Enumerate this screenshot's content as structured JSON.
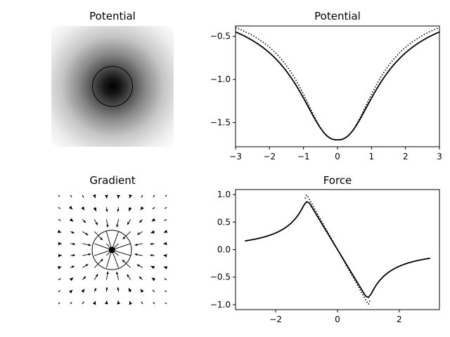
{
  "chart_data": [
    {
      "type": "heatmap",
      "title": "Potential",
      "description_values": {
        "x_range": [
          -3,
          3
        ],
        "y_range": [
          -3,
          3
        ],
        "circle_radius": 1,
        "colormap": "gray"
      }
    },
    {
      "type": "line",
      "title": "Potential",
      "xlabel": "",
      "ylabel": "",
      "xlim": [
        -3,
        3
      ],
      "ylim": [
        -1.78,
        -0.38
      ],
      "xticks": [
        "−3",
        "−2",
        "−1",
        "0",
        "1",
        "2",
        "3"
      ],
      "xtick_values": [
        -3,
        -2,
        -1,
        0,
        1,
        2,
        3
      ],
      "yticks": [
        "−0.5",
        "−1.0",
        "−1.5"
      ],
      "ytick_values": [
        -0.5,
        -1.0,
        -1.5
      ],
      "series": [
        {
          "style": "solid",
          "model": "softened",
          "amplitude": 1.7,
          "radius": 1.0
        },
        {
          "style": "dotted",
          "model": "softened",
          "amplitude": 1.7,
          "radius": 0.9
        }
      ]
    },
    {
      "type": "quiver",
      "title": "Gradient",
      "grid": {
        "nx": 10,
        "ny": 10,
        "range": [
          -3,
          3
        ]
      },
      "circle_radius": 1
    },
    {
      "type": "line",
      "title": "Force",
      "xlabel": "",
      "ylabel": "",
      "xlim": [
        -3.3,
        3.3
      ],
      "ylim": [
        -1.09,
        1.09
      ],
      "xticks": [
        "−2",
        "0",
        "2"
      ],
      "xtick_values": [
        -2,
        0,
        2
      ],
      "yticks": [
        "1.0",
        "0.5",
        "0.0",
        "−0.5",
        "−1.0"
      ],
      "ytick_values": [
        1.0,
        0.5,
        0.0,
        -0.5,
        -1.0
      ],
      "series": [
        {
          "style": "solid",
          "x_range": [
            -3,
            3
          ],
          "peak": 0.93
        },
        {
          "style": "dotted",
          "x_range": [
            -1.05,
            1.05
          ],
          "peak": 1.0
        }
      ]
    }
  ]
}
